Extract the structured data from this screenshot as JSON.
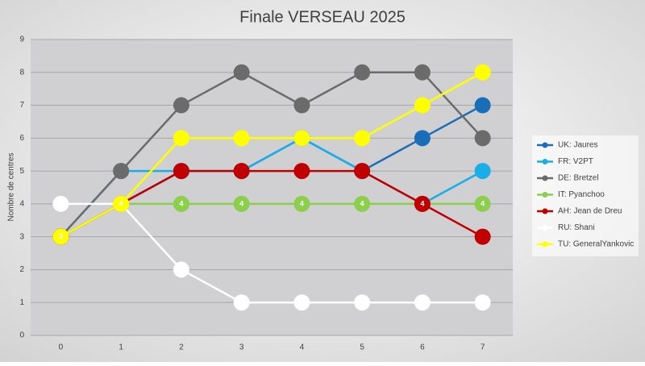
{
  "chart_data": {
    "type": "line",
    "title": "Finale VERSEAU 2025",
    "y_label": "Nombre de centres",
    "x": [
      0,
      1,
      2,
      3,
      4,
      5,
      6,
      7
    ],
    "xlim": [
      -0.5,
      7.5
    ],
    "xticks": [
      0,
      1,
      2,
      3,
      4,
      5,
      6,
      7
    ],
    "ylim": [
      0,
      9
    ],
    "yticks": [
      0,
      1,
      2,
      3,
      4,
      5,
      6,
      7,
      8,
      9
    ],
    "grid": true,
    "legend": "right",
    "series": [
      {
        "name": "UK: Jaures",
        "color": "#1a6db8",
        "values": [
          3,
          4,
          5,
          5,
          6,
          5,
          6,
          7
        ]
      },
      {
        "name": "FR: V2PT",
        "color": "#1aaee8",
        "values": [
          3,
          5,
          5,
          5,
          6,
          5,
          4,
          5
        ]
      },
      {
        "name": "DE: Bretzel",
        "color": "#6b6b6b",
        "values": [
          3,
          5,
          7,
          8,
          7,
          8,
          8,
          6
        ]
      },
      {
        "name": "IT: Pyanchoo",
        "color": "#8ccf4d",
        "values": [
          3,
          4,
          4,
          4,
          4,
          4,
          4,
          4
        ],
        "data_labels": true
      },
      {
        "name": "AH: Jean de Dreu",
        "color": "#c00000",
        "values": [
          3,
          4,
          5,
          5,
          5,
          5,
          4,
          3
        ]
      },
      {
        "name": "RU: Shani",
        "color": "#ffffff",
        "values": [
          4,
          4,
          2,
          1,
          1,
          1,
          1,
          1
        ]
      },
      {
        "name": "TU: GeneralYankovic",
        "color": "#ffff00",
        "values": [
          3,
          4,
          6,
          6,
          6,
          6,
          7,
          8
        ]
      }
    ]
  }
}
